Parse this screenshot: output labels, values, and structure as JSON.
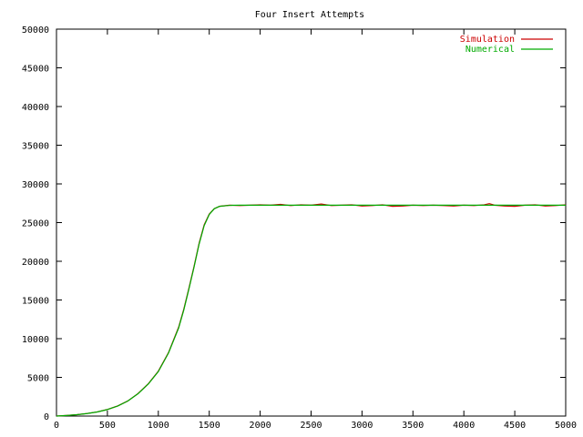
{
  "chart_data": {
    "type": "line",
    "title": "Four Insert Attempts",
    "xlabel": "",
    "ylabel": "",
    "xlim": [
      0,
      5000
    ],
    "ylim": [
      0,
      50000
    ],
    "x_ticks": [
      0,
      500,
      1000,
      1500,
      2000,
      2500,
      3000,
      3500,
      4000,
      4500,
      5000
    ],
    "y_ticks": [
      0,
      5000,
      10000,
      15000,
      20000,
      25000,
      30000,
      35000,
      40000,
      45000,
      50000
    ],
    "grid": false,
    "legend_position": "top-right",
    "series": [
      {
        "name": "Simulation",
        "color": "#cc0000",
        "points": [
          [
            0,
            0
          ],
          [
            100,
            80
          ],
          [
            200,
            180
          ],
          [
            300,
            330
          ],
          [
            400,
            540
          ],
          [
            500,
            850
          ],
          [
            600,
            1300
          ],
          [
            700,
            1950
          ],
          [
            800,
            2900
          ],
          [
            900,
            4150
          ],
          [
            1000,
            5800
          ],
          [
            1100,
            8200
          ],
          [
            1200,
            11500
          ],
          [
            1250,
            13800
          ],
          [
            1300,
            16500
          ],
          [
            1350,
            19300
          ],
          [
            1400,
            22300
          ],
          [
            1450,
            24700
          ],
          [
            1500,
            26100
          ],
          [
            1550,
            26800
          ],
          [
            1600,
            27100
          ],
          [
            1700,
            27250
          ],
          [
            1800,
            27200
          ],
          [
            1900,
            27250
          ],
          [
            2000,
            27300
          ],
          [
            2100,
            27250
          ],
          [
            2200,
            27350
          ],
          [
            2300,
            27200
          ],
          [
            2400,
            27300
          ],
          [
            2500,
            27250
          ],
          [
            2600,
            27400
          ],
          [
            2700,
            27200
          ],
          [
            2800,
            27250
          ],
          [
            2900,
            27300
          ],
          [
            3000,
            27150
          ],
          [
            3100,
            27200
          ],
          [
            3200,
            27300
          ],
          [
            3300,
            27100
          ],
          [
            3400,
            27150
          ],
          [
            3500,
            27250
          ],
          [
            3600,
            27200
          ],
          [
            3700,
            27250
          ],
          [
            3800,
            27200
          ],
          [
            3900,
            27150
          ],
          [
            4000,
            27250
          ],
          [
            4100,
            27200
          ],
          [
            4200,
            27300
          ],
          [
            4250,
            27450
          ],
          [
            4300,
            27250
          ],
          [
            4400,
            27150
          ],
          [
            4500,
            27100
          ],
          [
            4600,
            27250
          ],
          [
            4700,
            27300
          ],
          [
            4800,
            27150
          ],
          [
            4900,
            27200
          ],
          [
            5000,
            27300
          ]
        ]
      },
      {
        "name": "Numerical",
        "color": "#00aa00",
        "points": [
          [
            0,
            0
          ],
          [
            100,
            75
          ],
          [
            200,
            175
          ],
          [
            300,
            320
          ],
          [
            400,
            530
          ],
          [
            500,
            840
          ],
          [
            600,
            1290
          ],
          [
            700,
            1940
          ],
          [
            800,
            2880
          ],
          [
            900,
            4120
          ],
          [
            1000,
            5750
          ],
          [
            1100,
            8150
          ],
          [
            1200,
            11400
          ],
          [
            1250,
            13700
          ],
          [
            1300,
            16400
          ],
          [
            1350,
            19200
          ],
          [
            1400,
            22200
          ],
          [
            1450,
            24600
          ],
          [
            1500,
            26050
          ],
          [
            1550,
            26800
          ],
          [
            1600,
            27100
          ],
          [
            1700,
            27230
          ],
          [
            1800,
            27250
          ],
          [
            1900,
            27250
          ],
          [
            2000,
            27250
          ],
          [
            2500,
            27250
          ],
          [
            3000,
            27250
          ],
          [
            3500,
            27250
          ],
          [
            4000,
            27250
          ],
          [
            4500,
            27250
          ],
          [
            5000,
            27250
          ]
        ]
      }
    ]
  }
}
